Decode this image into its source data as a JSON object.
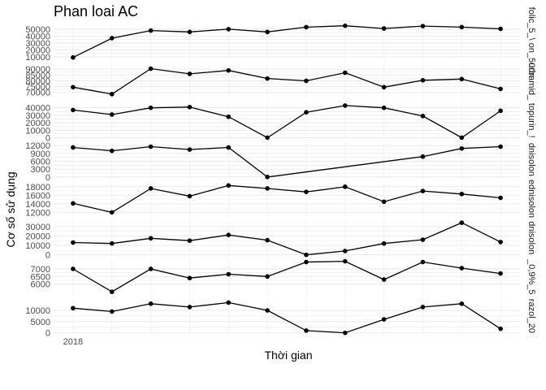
{
  "chart_data": {
    "type": "line",
    "title": "Phan loai AC",
    "xlabel": "Thời gian",
    "ylabel": "Cơ số sử dụng",
    "x_tick_labels": [
      "2018"
    ],
    "x": [
      1,
      2,
      3,
      4,
      5,
      6,
      7,
      8,
      9,
      10,
      11,
      12
    ],
    "grid": true,
    "legend": "none",
    "colors": {
      "line": "#000000",
      "grid": "#ebebeb",
      "text": "#4d4d4d"
    },
    "facets": [
      {
        "strip": "folic_5_\\ on_500n",
        "ylim": [
          5000,
          57000
        ],
        "yticks": [
          10000,
          20000,
          30000,
          40000,
          50000
        ],
        "ytick_labels": [
          "10000",
          "20000",
          "30000",
          "40000",
          "50000"
        ],
        "values": [
          9000,
          37000,
          48000,
          46000,
          50000,
          46000,
          53000,
          55000,
          51000,
          54500,
          53000,
          50500
        ]
      },
      {
        "strip": "urbamid_",
        "ylim": [
          64000,
          95000
        ],
        "yticks": [
          70000,
          75000,
          80000,
          85000,
          90000
        ],
        "ytick_labels": [
          "70000",
          "75000",
          "80000",
          "85000",
          "90000"
        ],
        "values": [
          74500,
          68500,
          90500,
          86000,
          89000,
          82000,
          80000,
          87000,
          74500,
          80500,
          81500,
          73000
        ]
      },
      {
        "strip": "topurin_!",
        "ylim": [
          -1000,
          47000
        ],
        "yticks": [
          0,
          10000,
          20000,
          30000,
          40000
        ],
        "ytick_labels": [
          "0",
          "10000",
          "20000",
          "30000",
          "40000"
        ],
        "values": [
          37000,
          31000,
          40000,
          41000,
          28000,
          0,
          34000,
          43000,
          40000,
          29000,
          0,
          36000
        ]
      },
      {
        "strip": "dnisolon",
        "ylim": [
          -200,
          13500
        ],
        "yticks": [
          0,
          3000,
          6000,
          9000,
          12000
        ],
        "ytick_labels": [
          "0",
          "3000",
          "6000",
          "9000",
          "12000"
        ],
        "values": [
          11300,
          10000,
          11600,
          10500,
          11300,
          0,
          null,
          null,
          null,
          7800,
          10900,
          11600
        ]
      },
      {
        "strip": "ednisolon",
        "ylim": [
          11000,
          19400
        ],
        "yticks": [
          12000,
          14000,
          16000,
          18000
        ],
        "ytick_labels": [
          "12000",
          "14000",
          "16000",
          "18000"
        ],
        "values": [
          14100,
          12000,
          17600,
          15800,
          18300,
          17600,
          16800,
          18000,
          14500,
          17000,
          16300,
          15400
        ]
      },
      {
        "strip": "dnisolon",
        "ylim": [
          -1000,
          37000
        ],
        "yticks": [
          0,
          10000,
          20000,
          30000
        ],
        "ytick_labels": [
          "0",
          "10000",
          "20000",
          "30000"
        ],
        "values": [
          13000,
          12000,
          17500,
          15000,
          21000,
          15500,
          0,
          4000,
          12000,
          16000,
          34000,
          13500
        ]
      },
      {
        "strip": "_0,9%_5",
        "ylim": [
          5300,
          7650
        ],
        "yticks": [
          6000,
          6500,
          7000
        ],
        "ytick_labels": [
          "6000",
          "6500",
          "7000"
        ],
        "values": [
          7000,
          5500,
          7000,
          6400,
          6650,
          6500,
          7450,
          7500,
          6300,
          7450,
          7050,
          6700
        ]
      },
      {
        "strip": "razol_20",
        "ylim": [
          -500,
          15500
        ],
        "yticks": [
          0,
          5000,
          10000
        ],
        "ytick_labels": [
          "0",
          "5000",
          "10000"
        ],
        "values": [
          11000,
          9500,
          13000,
          11500,
          13500,
          10000,
          1000,
          0,
          6000,
          11500,
          13000,
          1800
        ]
      }
    ]
  }
}
